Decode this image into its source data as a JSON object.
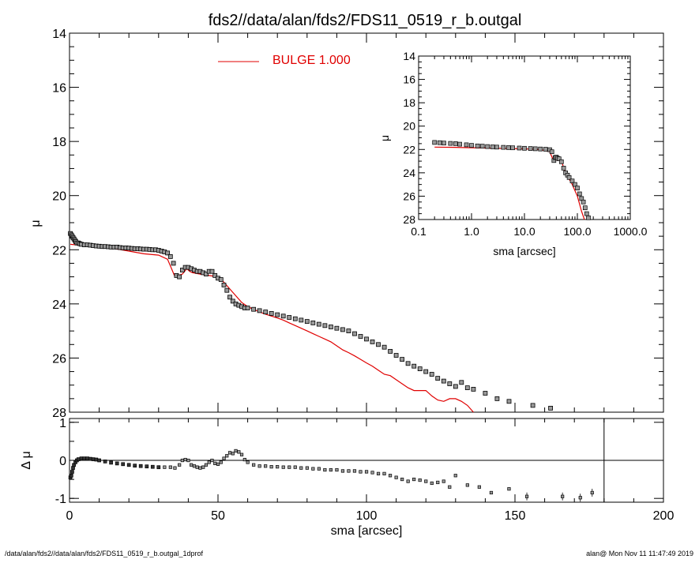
{
  "figure": {
    "title": "fds2//data/alan/fds2/FDS11_0519_r_b.outgal",
    "footer_left": "/data/alan/fds2//data/alan/fds2/FDS11_0519_r_b.outgal_1dprof",
    "footer_right": "alan@  Mon Nov 11 11:47:49 2019"
  },
  "colors": {
    "model": "#e00000",
    "data": "#000000",
    "marker_fill": "#9a9a9a"
  },
  "chart_data": [
    {
      "id": "main",
      "type": "scatter",
      "title": "fds2//data/alan/fds2/FDS11_0519_r_b.outgal",
      "xlabel": "",
      "ylabel": "μ",
      "xlim": [
        0,
        200
      ],
      "ylim": [
        28,
        14
      ],
      "y_inverted": true,
      "yticks": [
        "14",
        "16",
        "18",
        "20",
        "22",
        "24",
        "26",
        "28"
      ],
      "xticks": [
        "0",
        "50",
        "100",
        "150",
        "200"
      ],
      "legend": {
        "label": "BULGE  1.000",
        "placement": "top-center"
      },
      "series": [
        {
          "name": "BULGE  1.000",
          "type": "line",
          "color": "#e00000",
          "x": [
            0.3,
            5,
            10,
            15,
            20,
            25,
            30,
            33,
            34,
            35.5,
            36.5,
            38,
            39.5,
            40.5,
            41.5,
            44,
            47,
            50,
            52,
            54,
            56,
            58,
            60,
            62,
            64,
            66,
            68,
            70,
            72,
            74,
            76,
            78,
            80,
            82,
            84,
            86,
            88,
            90,
            92,
            94,
            96,
            98,
            100,
            102,
            104,
            106,
            108,
            110,
            112,
            114,
            116,
            118,
            120,
            122,
            124,
            126,
            128,
            130,
            132,
            134,
            136
          ],
          "y": [
            21.8,
            21.85,
            21.9,
            21.95,
            22.05,
            22.15,
            22.2,
            22.35,
            22.6,
            23.0,
            22.95,
            22.9,
            22.7,
            22.8,
            22.85,
            22.9,
            22.95,
            23.0,
            23.2,
            23.45,
            23.7,
            23.95,
            24.1,
            24.2,
            24.3,
            24.38,
            24.45,
            24.52,
            24.6,
            24.7,
            24.8,
            24.9,
            25.0,
            25.1,
            25.2,
            25.3,
            25.4,
            25.55,
            25.7,
            25.8,
            25.92,
            26.05,
            26.18,
            26.3,
            26.45,
            26.6,
            26.65,
            26.8,
            26.95,
            27.1,
            27.2,
            27.2,
            27.2,
            27.4,
            27.55,
            27.6,
            27.5,
            27.5,
            27.6,
            27.75,
            28.0
          ]
        },
        {
          "name": "",
          "type": "scatter",
          "color": "#000000",
          "x": [
            0.3,
            0.6,
            0.9,
            1.2,
            1.5,
            1.8,
            2.1,
            2.5,
            3,
            3.5,
            4,
            5,
            6,
            7,
            8,
            9,
            10,
            11,
            12,
            13,
            14,
            15,
            16,
            17,
            18,
            19,
            20,
            21,
            22,
            23,
            24,
            25,
            26,
            27,
            28,
            29,
            30,
            31,
            32,
            33,
            34,
            35,
            36,
            37,
            38,
            39,
            40,
            41,
            42,
            43,
            44,
            45,
            46,
            47,
            48,
            49,
            50,
            51,
            52,
            53,
            54,
            55,
            56,
            57,
            58,
            59,
            60,
            62,
            64,
            66,
            68,
            70,
            72,
            74,
            76,
            78,
            80,
            82,
            84,
            86,
            88,
            90,
            92,
            94,
            96,
            98,
            100,
            102,
            104,
            106,
            108,
            110,
            112,
            114,
            116,
            118,
            120,
            122,
            124,
            126,
            128,
            130,
            132,
            134,
            136,
            140,
            144,
            148,
            156,
            162
          ],
          "y": [
            21.4,
            21.45,
            21.5,
            21.55,
            21.6,
            21.65,
            21.7,
            21.75,
            21.75,
            21.78,
            21.8,
            21.82,
            21.82,
            21.83,
            21.85,
            21.86,
            21.87,
            21.88,
            21.88,
            21.89,
            21.9,
            21.9,
            21.9,
            21.92,
            21.93,
            21.93,
            21.94,
            21.95,
            21.96,
            21.96,
            21.97,
            21.98,
            21.98,
            21.99,
            22.0,
            22.0,
            22.02,
            22.05,
            22.08,
            22.12,
            22.25,
            22.5,
            22.95,
            23.0,
            22.75,
            22.65,
            22.65,
            22.7,
            22.75,
            22.8,
            22.8,
            22.85,
            22.9,
            22.8,
            22.8,
            22.95,
            23.05,
            23.1,
            23.3,
            23.5,
            23.75,
            23.9,
            24.0,
            24.05,
            24.1,
            24.15,
            24.15,
            24.2,
            24.25,
            24.3,
            24.35,
            24.4,
            24.45,
            24.5,
            24.55,
            24.6,
            24.65,
            24.7,
            24.75,
            24.8,
            24.85,
            24.9,
            24.95,
            25.0,
            25.1,
            25.2,
            25.3,
            25.4,
            25.5,
            25.6,
            25.75,
            25.9,
            26.05,
            26.2,
            26.3,
            26.4,
            26.5,
            26.6,
            26.75,
            26.85,
            26.95,
            27.05,
            26.9,
            27.1,
            27.15,
            27.3,
            27.5,
            27.6,
            27.75,
            27.85
          ]
        }
      ]
    },
    {
      "id": "residual",
      "type": "scatter",
      "xlabel": "sma [arcsec]",
      "ylabel": "Δ μ",
      "xlim": [
        0,
        200
      ],
      "ylim": [
        -1.1,
        1.1
      ],
      "yticks": [
        "1",
        "0",
        "-1"
      ],
      "xticks": [
        "0",
        "50",
        "100",
        "150",
        "200"
      ],
      "reference_lines": {
        "horizontal_y": 0,
        "vertical_x": 180
      },
      "series": [
        {
          "name": "",
          "color": "#000000",
          "x": [
            0.3,
            0.6,
            0.9,
            1.2,
            1.5,
            2,
            2.5,
            3,
            4,
            5,
            6,
            7,
            8,
            9,
            10,
            12,
            14,
            16,
            18,
            20,
            22,
            24,
            26,
            28,
            30,
            32,
            34,
            35.5,
            37,
            38,
            39,
            40,
            41,
            42,
            43,
            44,
            45,
            46,
            47,
            48,
            49,
            50,
            51,
            52,
            53,
            54,
            55,
            56,
            57,
            58,
            59,
            60,
            62,
            64,
            66,
            68,
            70,
            72,
            74,
            76,
            78,
            80,
            82,
            84,
            86,
            88,
            90,
            92,
            94,
            96,
            98,
            100,
            102,
            104,
            106,
            108,
            110,
            112,
            114,
            116,
            118,
            120,
            122,
            124,
            126,
            128,
            130,
            134,
            138,
            142,
            148,
            154,
            166,
            172,
            176
          ],
          "y": [
            -0.45,
            -0.4,
            -0.3,
            -0.2,
            -0.12,
            -0.05,
            0.0,
            0.03,
            0.05,
            0.05,
            0.05,
            0.04,
            0.03,
            0.02,
            0.0,
            -0.03,
            -0.06,
            -0.08,
            -0.1,
            -0.12,
            -0.14,
            -0.15,
            -0.16,
            -0.17,
            -0.18,
            -0.18,
            -0.18,
            -0.2,
            -0.12,
            0.0,
            0.02,
            0.0,
            -0.12,
            -0.15,
            -0.18,
            -0.2,
            -0.18,
            -0.12,
            -0.05,
            0.0,
            -0.08,
            -0.1,
            -0.05,
            0.05,
            0.12,
            0.2,
            0.18,
            0.25,
            0.22,
            0.15,
            0.02,
            -0.05,
            -0.12,
            -0.15,
            -0.15,
            -0.17,
            -0.17,
            -0.18,
            -0.18,
            -0.18,
            -0.2,
            -0.2,
            -0.22,
            -0.22,
            -0.25,
            -0.25,
            -0.25,
            -0.28,
            -0.28,
            -0.28,
            -0.3,
            -0.3,
            -0.32,
            -0.35,
            -0.35,
            -0.4,
            -0.45,
            -0.5,
            -0.55,
            -0.5,
            -0.52,
            -0.55,
            -0.6,
            -0.58,
            -0.55,
            -0.7,
            -0.4,
            -0.65,
            -0.7,
            -0.85,
            -0.75,
            -0.95,
            -0.95,
            -0.98,
            -0.85
          ]
        }
      ]
    },
    {
      "id": "inset",
      "type": "scatter",
      "xlabel": "sma [arcsec]",
      "ylabel": "μ",
      "x_scale": "log",
      "xlim": [
        0.1,
        1000
      ],
      "ylim": [
        28,
        14
      ],
      "y_inverted": true,
      "yticks": [
        "14",
        "16",
        "18",
        "20",
        "22",
        "24",
        "26",
        "28"
      ],
      "xticks": [
        "0.1",
        "1.0",
        "10.0",
        "100.0",
        "1000.0"
      ],
      "series": [
        {
          "name": "BULGE  1.000",
          "type": "line",
          "color": "#e00000",
          "x": [
            0.2,
            0.5,
            1,
            2,
            5,
            10,
            20,
            30,
            35,
            40,
            50,
            60,
            80,
            100,
            120,
            136
          ],
          "y": [
            21.8,
            21.82,
            21.85,
            21.88,
            21.92,
            21.95,
            22.0,
            22.2,
            22.9,
            22.9,
            23.0,
            24.0,
            25.0,
            26.0,
            27.3,
            28.0
          ]
        },
        {
          "name": "",
          "type": "scatter",
          "color": "#000000",
          "x": [
            0.2,
            0.25,
            0.3,
            0.4,
            0.5,
            0.6,
            0.8,
            1,
            1.3,
            1.6,
            2,
            2.5,
            3,
            4,
            5,
            6,
            8,
            10,
            13,
            16,
            20,
            25,
            30,
            33,
            36,
            38,
            40,
            42,
            45,
            50,
            55,
            60,
            65,
            70,
            80,
            90,
            100,
            110,
            120,
            130,
            140,
            150,
            162
          ],
          "y": [
            21.4,
            21.42,
            21.45,
            21.48,
            21.5,
            21.55,
            21.6,
            21.65,
            21.7,
            21.72,
            21.75,
            21.78,
            21.8,
            21.82,
            21.84,
            21.86,
            21.88,
            21.9,
            21.92,
            21.94,
            21.96,
            21.98,
            22.02,
            22.2,
            22.95,
            22.7,
            22.65,
            22.75,
            22.8,
            23.05,
            23.6,
            24.0,
            24.2,
            24.4,
            24.7,
            25.0,
            25.3,
            25.8,
            26.2,
            26.5,
            27.0,
            27.5,
            27.85
          ]
        }
      ]
    }
  ]
}
